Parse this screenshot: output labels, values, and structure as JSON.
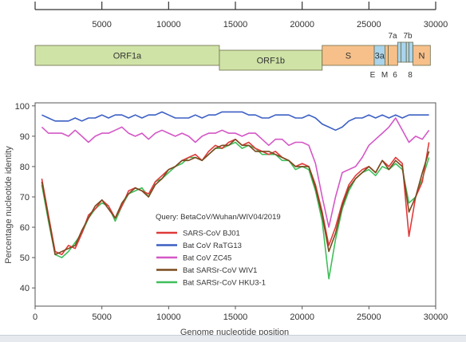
{
  "genome_map": {
    "ticks": [
      "5000",
      "10000",
      "15000",
      "20000",
      "25000",
      "30000"
    ],
    "tick_values": [
      5000,
      10000,
      15000,
      20000,
      25000,
      30000
    ],
    "genes": [
      {
        "name": "ORF1a",
        "start": 0,
        "end": 13800,
        "row": "low",
        "color": "#cfe3a6"
      },
      {
        "name": "ORF1b",
        "start": 13800,
        "end": 21500,
        "row": "high",
        "color": "#cfe3a6"
      },
      {
        "name": "S",
        "start": 21500,
        "end": 25400,
        "row": "low",
        "color": "#f7c08a"
      },
      {
        "name": "3a",
        "start": 25400,
        "end": 26200,
        "row": "low",
        "color": "#a9d4ec"
      },
      {
        "name": "E",
        "start": 26200,
        "end": 26450,
        "row": "low",
        "color": "#f7c08a"
      },
      {
        "name": "M",
        "start": 26450,
        "end": 27150,
        "row": "low",
        "color": "#f7c08a"
      },
      {
        "name": "6",
        "start": 27150,
        "end": 27400,
        "row": "low",
        "color": "#a9d4ec"
      },
      {
        "name": "7a",
        "start": 27400,
        "end": 27800,
        "row": "low",
        "color": "#a9d4ec"
      },
      {
        "name": "7b",
        "start": 27800,
        "end": 28000,
        "row": "low",
        "color": "#a9d4ec"
      },
      {
        "name": "8",
        "start": 28000,
        "end": 28300,
        "row": "low",
        "color": "#a9d4ec"
      },
      {
        "name": "N",
        "start": 28300,
        "end": 29600,
        "row": "low",
        "color": "#f7c08a"
      }
    ]
  },
  "chart_data": {
    "type": "line",
    "xlabel": "Genome nucleotide position",
    "ylabel": "Percentage nucleotide identity",
    "xlim": [
      0,
      30000
    ],
    "ylim": [
      34,
      101
    ],
    "xticks": [
      0,
      5000,
      10000,
      15000,
      20000,
      25000,
      30000
    ],
    "yticks": [
      40,
      50,
      60,
      70,
      80,
      90,
      100
    ],
    "legend_title": "Query: BetaCoV/Wuhan/WIV04/2019",
    "legend_position": "center-left",
    "x": [
      500,
      1000,
      1500,
      2000,
      2500,
      3000,
      3500,
      4000,
      4500,
      5000,
      5500,
      6000,
      6500,
      7000,
      7500,
      8000,
      8500,
      9000,
      9500,
      10000,
      10500,
      11000,
      11500,
      12000,
      12500,
      13000,
      13500,
      14000,
      14500,
      15000,
      15500,
      16000,
      16500,
      17000,
      17500,
      18000,
      18500,
      19000,
      19500,
      20000,
      20500,
      21000,
      21500,
      22000,
      22500,
      23000,
      23500,
      24000,
      24500,
      25000,
      25500,
      26000,
      26500,
      27000,
      27500,
      28000,
      28500,
      29000,
      29500
    ],
    "series": [
      {
        "name": "SARS-CoV BJ01",
        "color": "#e03a3a",
        "values": [
          76,
          64,
          52,
          51,
          54,
          53,
          58,
          64,
          66,
          69,
          67,
          63,
          67,
          72,
          73,
          72,
          71,
          75,
          77,
          79,
          80,
          82,
          83,
          84,
          82,
          85,
          87,
          86,
          88,
          89,
          87,
          88,
          86,
          85,
          84,
          85,
          83,
          82,
          80,
          81,
          80,
          74,
          65,
          54,
          60,
          68,
          74,
          77,
          79,
          80,
          78,
          82,
          80,
          83,
          81,
          57,
          70,
          75,
          88
        ]
      },
      {
        "name": "Bat CoV RaTG13",
        "color": "#3b5fc4",
        "values": [
          97,
          96,
          95,
          95,
          95,
          96,
          95,
          96,
          96,
          97,
          96,
          97,
          97,
          96,
          97,
          96,
          97,
          97,
          98,
          97,
          96,
          96,
          96,
          97,
          96,
          97,
          97,
          98,
          98,
          98,
          98,
          97,
          97,
          96,
          96,
          97,
          97,
          97,
          96,
          96,
          97,
          96,
          94,
          93,
          92,
          93,
          95,
          96,
          96,
          97,
          96,
          97,
          96,
          97,
          96,
          97,
          97,
          97,
          97
        ]
      },
      {
        "name": "Bat CoV ZC45",
        "color": "#d457c6",
        "values": [
          93,
          91,
          91,
          91,
          90,
          92,
          90,
          88,
          90,
          91,
          91,
          92,
          93,
          91,
          90,
          91,
          89,
          91,
          92,
          91,
          90,
          91,
          90,
          88,
          90,
          91,
          91,
          92,
          91,
          91,
          90,
          91,
          91,
          89,
          87,
          89,
          89,
          87,
          88,
          88,
          87,
          81,
          70,
          60,
          70,
          78,
          79,
          80,
          83,
          87,
          89,
          91,
          93,
          96,
          92,
          88,
          90,
          89,
          92
        ]
      },
      {
        "name": "Bat SARSr-CoV WIV1",
        "color": "#7a4a1f",
        "values": [
          75,
          63,
          51,
          52,
          53,
          54,
          59,
          63,
          67,
          69,
          66,
          63,
          68,
          71,
          73,
          72,
          70,
          74,
          76,
          79,
          80,
          82,
          82,
          83,
          82,
          84,
          86,
          87,
          87,
          89,
          87,
          87,
          85,
          85,
          85,
          84,
          83,
          82,
          80,
          80,
          80,
          73,
          64,
          52,
          58,
          67,
          73,
          76,
          78,
          80,
          78,
          82,
          79,
          82,
          80,
          65,
          70,
          78,
          85
        ]
      },
      {
        "name": "Bat SARSr-CoV HKU3-1",
        "color": "#3fbf5a",
        "values": [
          74,
          62,
          51,
          50,
          52,
          55,
          58,
          63,
          66,
          68,
          67,
          62,
          67,
          71,
          72,
          73,
          70,
          75,
          76,
          78,
          80,
          81,
          83,
          83,
          82,
          84,
          86,
          86,
          87,
          88,
          86,
          87,
          86,
          84,
          84,
          84,
          82,
          82,
          79,
          80,
          79,
          72,
          62,
          43,
          56,
          66,
          72,
          76,
          78,
          79,
          77,
          80,
          79,
          81,
          79,
          68,
          70,
          76,
          83
        ]
      }
    ]
  }
}
